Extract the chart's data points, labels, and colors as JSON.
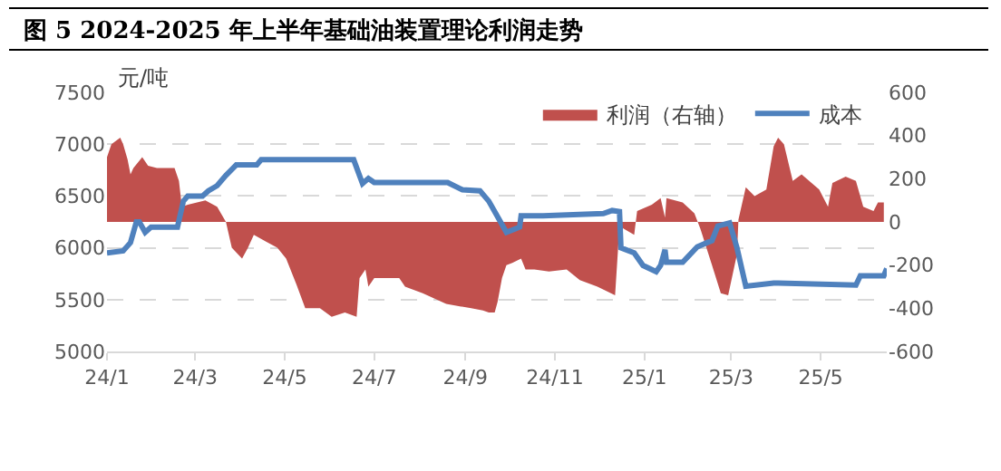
{
  "chart_data": {
    "type": "line",
    "title": "图 5 2024-2025 年上半年基础油装置理论利润走势",
    "ylabel": "元/吨",
    "xlim": [
      "2024-01-01",
      "2025-06-15"
    ],
    "xticks": [
      {
        "value": "2024-01-01",
        "label": "24/1"
      },
      {
        "value": "2024-03-01",
        "label": "24/3"
      },
      {
        "value": "2024-05-01",
        "label": "24/5"
      },
      {
        "value": "2024-07-01",
        "label": "24/7"
      },
      {
        "value": "2024-09-01",
        "label": "24/9"
      },
      {
        "value": "2024-11-01",
        "label": "24/11"
      },
      {
        "value": "2025-01-01",
        "label": "25/1"
      },
      {
        "value": "2025-03-01",
        "label": "25/3"
      },
      {
        "value": "2025-05-01",
        "label": "25/5"
      }
    ],
    "ylim": [
      5000,
      7500
    ],
    "yticks": [
      5000,
      5500,
      6000,
      6500,
      7000,
      7500
    ],
    "y2lim": [
      -600,
      600
    ],
    "y2ticks": [
      -600,
      -400,
      -200,
      0,
      200,
      400,
      600
    ],
    "grid": "y",
    "legend": "top right",
    "line_style": "solid",
    "marker": "none",
    "series": [
      {
        "name": "利润（右轴）",
        "type": "area",
        "axis": "y2",
        "color": "#c0504d",
        "x": [
          "2024-01-01",
          "2024-01-04",
          "2024-01-10",
          "2024-01-12",
          "2024-01-15",
          "2024-01-17",
          "2024-01-19",
          "2024-01-25",
          "2024-01-29",
          "2024-02-04",
          "2024-02-16",
          "2024-02-19",
          "2024-02-21",
          "2024-02-25",
          "2024-03-08",
          "2024-03-16",
          "2024-03-22",
          "2024-03-26",
          "2024-04-02",
          "2024-04-06",
          "2024-04-10",
          "2024-04-18",
          "2024-04-26",
          "2024-05-02",
          "2024-05-09",
          "2024-05-15",
          "2024-05-25",
          "2024-06-02",
          "2024-06-11",
          "2024-06-19",
          "2024-06-21",
          "2024-06-25",
          "2024-06-27",
          "2024-07-01",
          "2024-07-18",
          "2024-07-22",
          "2024-08-03",
          "2024-08-19",
          "2024-09-05",
          "2024-09-13",
          "2024-09-17",
          "2024-09-21",
          "2024-09-23",
          "2024-09-26",
          "2024-09-29",
          "2024-10-03",
          "2024-10-09",
          "2024-10-12",
          "2024-10-18",
          "2024-10-28",
          "2024-11-09",
          "2024-11-18",
          "2024-11-30",
          "2024-12-12",
          "2024-12-15",
          "2024-12-25",
          "2024-12-27",
          "2025-01-06",
          "2025-01-12",
          "2025-01-15",
          "2025-01-16",
          "2025-01-27",
          "2025-02-04",
          "2025-02-08",
          "2025-02-16",
          "2025-02-22",
          "2025-02-27",
          "2025-03-05",
          "2025-03-06",
          "2025-03-11",
          "2025-03-17",
          "2025-03-25",
          "2025-03-30",
          "2025-04-02",
          "2025-04-06",
          "2025-04-12",
          "2025-04-18",
          "2025-04-30",
          "2025-05-06",
          "2025-05-09",
          "2025-05-18",
          "2025-05-25",
          "2025-05-30",
          "2025-06-06",
          "2025-06-09",
          "2025-06-13"
        ],
        "values": [
          300,
          360,
          390,
          360,
          290,
          220,
          250,
          300,
          260,
          250,
          250,
          190,
          70,
          80,
          100,
          70,
          0,
          -120,
          -170,
          -120,
          -60,
          -90,
          -120,
          -170,
          -290,
          -400,
          -400,
          -440,
          -420,
          -440,
          -260,
          -220,
          -300,
          -260,
          -260,
          -300,
          -330,
          -380,
          -400,
          -410,
          -420,
          -420,
          -370,
          -260,
          -200,
          -190,
          -170,
          -220,
          -220,
          -230,
          -220,
          -270,
          -300,
          -340,
          -20,
          -60,
          50,
          80,
          110,
          20,
          110,
          90,
          40,
          -30,
          -200,
          -330,
          -340,
          -150,
          10,
          160,
          120,
          150,
          350,
          390,
          360,
          190,
          220,
          150,
          70,
          180,
          210,
          190,
          70,
          50,
          90,
          90
        ]
      },
      {
        "name": "成本",
        "color": "#4f81bd",
        "x": [
          "2024-01-01",
          "2024-01-12",
          "2024-01-17",
          "2024-01-21",
          "2024-01-23",
          "2024-01-27",
          "2024-01-31",
          "2024-02-18",
          "2024-02-22",
          "2024-02-25",
          "2024-03-06",
          "2024-03-10",
          "2024-03-16",
          "2024-03-22",
          "2024-03-29",
          "2024-04-12",
          "2024-04-15",
          "2024-06-17",
          "2024-06-23",
          "2024-06-27",
          "2024-07-01",
          "2024-08-20",
          "2024-08-30",
          "2024-09-11",
          "2024-09-17",
          "2024-09-25",
          "2024-09-29",
          "2024-10-08",
          "2024-10-09",
          "2024-10-24",
          "2024-12-04",
          "2024-12-10",
          "2024-12-15",
          "2024-12-16",
          "2024-12-25",
          "2024-12-31",
          "2025-01-09",
          "2025-01-12",
          "2025-01-15",
          "2025-01-16",
          "2025-01-27",
          "2025-02-06",
          "2025-02-16",
          "2025-02-20",
          "2025-02-28",
          "2025-03-05",
          "2025-03-11",
          "2025-03-30",
          "2025-04-02",
          "2025-05-25",
          "2025-05-28",
          "2025-06-13",
          "2025-06-15"
        ],
        "values": [
          5950,
          5970,
          6050,
          6250,
          6250,
          6150,
          6200,
          6200,
          6450,
          6500,
          6500,
          6550,
          6600,
          6700,
          6800,
          6800,
          6850,
          6850,
          6620,
          6670,
          6630,
          6630,
          6560,
          6550,
          6450,
          6250,
          6150,
          6200,
          6310,
          6310,
          6330,
          6360,
          6350,
          6000,
          5950,
          5830,
          5770,
          5830,
          5980,
          5860,
          5860,
          6010,
          6070,
          6210,
          6240,
          6000,
          5630,
          5660,
          5660,
          5640,
          5730,
          5730,
          5800
        ]
      }
    ]
  }
}
